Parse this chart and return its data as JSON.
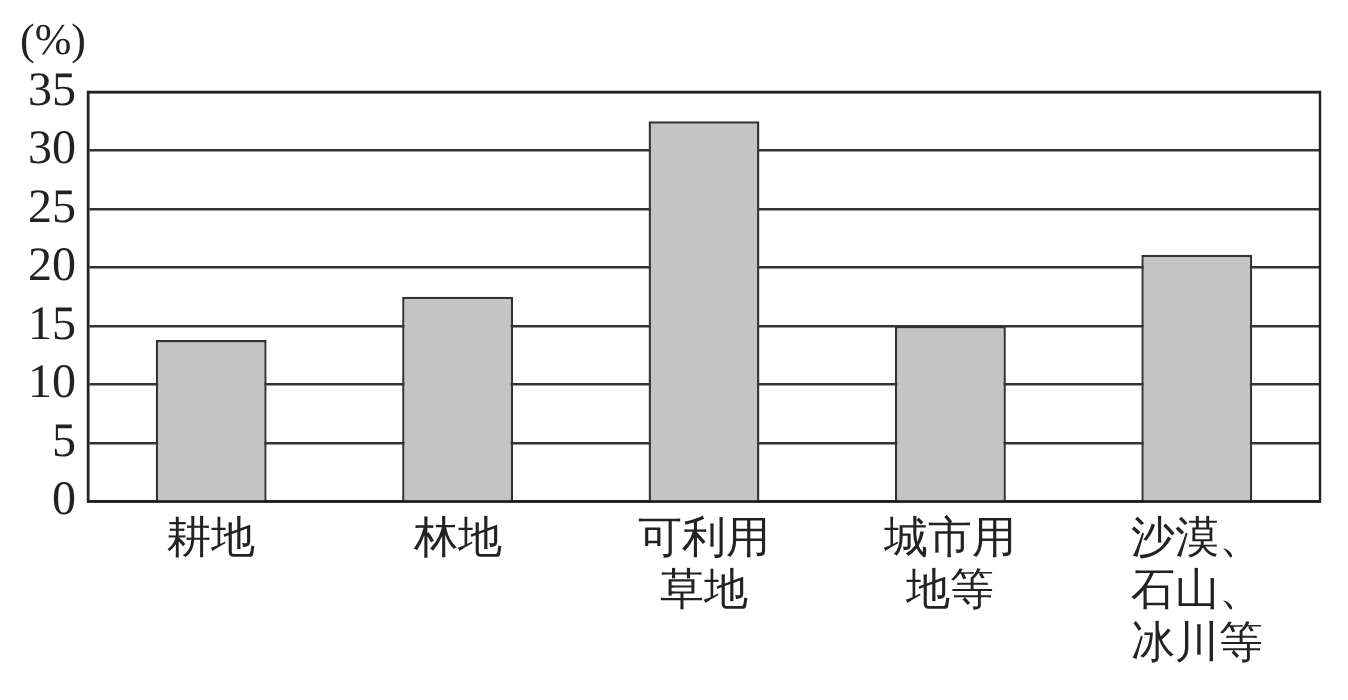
{
  "chart_data": {
    "type": "bar",
    "ylabel": "(%)",
    "categories": [
      "耕地",
      "林地",
      "可利用草地",
      "城市用地等",
      "沙漠、石山、冰川等"
    ],
    "values": [
      13.8,
      17.5,
      32.5,
      15,
      21.1
    ],
    "color": "#c4c4c4",
    "ylim": [
      0,
      35
    ],
    "yticks": [
      0,
      5,
      10,
      15,
      20,
      25,
      30,
      35
    ],
    "grid": "y",
    "legend": false
  }
}
